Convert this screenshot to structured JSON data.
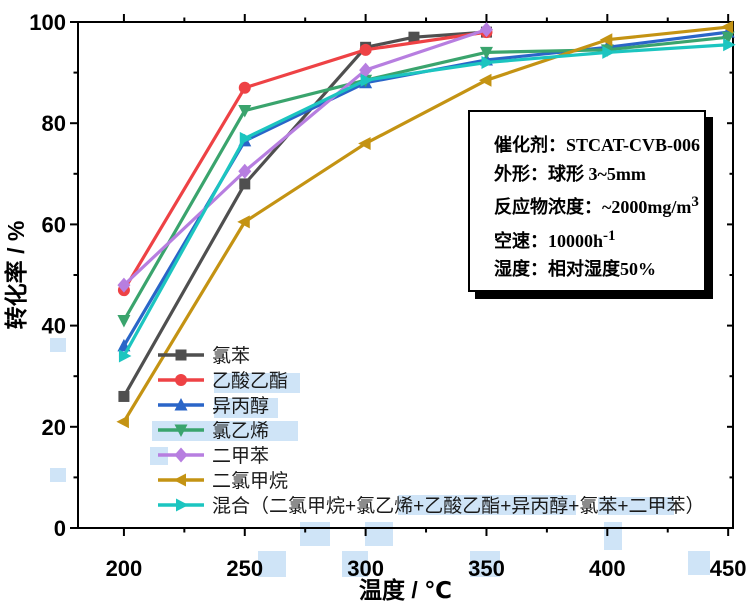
{
  "colors": {
    "background": "#ffffff",
    "axis": "#000000",
    "selection_highlight": "#a8cef1",
    "info_box_shadow": "#000000"
  },
  "chart_data": {
    "type": "line",
    "title": "",
    "xlabel": "温度 / ℃",
    "ylabel": "转化率 / %",
    "xlim": [
      181,
      452
    ],
    "ylim": [
      0,
      100
    ],
    "x_major_ticks": [
      200,
      250,
      300,
      350,
      400,
      450
    ],
    "x_minor_ticks": [
      225,
      275,
      325,
      375,
      425
    ],
    "y_major_ticks": [
      0,
      20,
      40,
      60,
      80,
      100
    ],
    "y_minor_ticks": [
      10,
      30,
      50,
      70,
      90
    ],
    "grid": false,
    "legend_position": "inside-lower-left",
    "series": [
      {
        "name": "氯苯",
        "color": "#4f4f4f",
        "marker": "square",
        "x": [
          200,
          250,
          300,
          320,
          350
        ],
        "y": [
          26,
          68,
          95,
          97,
          98
        ]
      },
      {
        "name": "乙酸乙酯",
        "color": "#ee4245",
        "marker": "circle",
        "x": [
          200,
          250,
          300,
          350
        ],
        "y": [
          47,
          87,
          94.5,
          98
        ]
      },
      {
        "name": "异丙醇",
        "color": "#2a65c8",
        "marker": "triangle-up",
        "x": [
          200,
          250,
          300,
          350,
          400,
          450
        ],
        "y": [
          36,
          76.5,
          88,
          92.5,
          95,
          98
        ]
      },
      {
        "name": "氯乙烯",
        "color": "#3aa46d",
        "marker": "triangle-down",
        "x": [
          200,
          250,
          300,
          350,
          400,
          450
        ],
        "y": [
          41,
          82.5,
          88.5,
          94,
          94.5,
          97
        ]
      },
      {
        "name": "二甲苯",
        "color": "#b77ee0",
        "marker": "diamond",
        "x": [
          200,
          250,
          300,
          350
        ],
        "y": [
          48,
          70.5,
          90.5,
          98.5
        ]
      },
      {
        "name": "二氯甲烷",
        "color": "#c49313",
        "marker": "triangle-left",
        "x": [
          200,
          250,
          300,
          350,
          400,
          450
        ],
        "y": [
          21,
          60.5,
          76,
          88.5,
          96.5,
          99
        ]
      },
      {
        "name": "混合（二氯甲烷+氯乙烯+乙酸乙酯+异丙醇+氯苯+二甲苯）",
        "color": "#1cc5c0",
        "marker": "triangle-right",
        "x": [
          200,
          250,
          300,
          350,
          400,
          450
        ],
        "y": [
          34,
          77,
          88.5,
          92,
          94,
          95.5
        ]
      }
    ]
  },
  "info_box": {
    "lines": [
      {
        "label": "催化剂：",
        "value": "STCAT-CVB-006",
        "sup": ""
      },
      {
        "label": "外形：",
        "value": "球形 3~5mm",
        "sup": ""
      },
      {
        "label": "反应物浓度：",
        "value": "~2000mg/m",
        "sup": "3"
      },
      {
        "label": "空速：",
        "value": "10000h",
        "sup": "-1"
      },
      {
        "label": "湿度：",
        "value": "相对湿度50%",
        "sup": ""
      }
    ]
  }
}
